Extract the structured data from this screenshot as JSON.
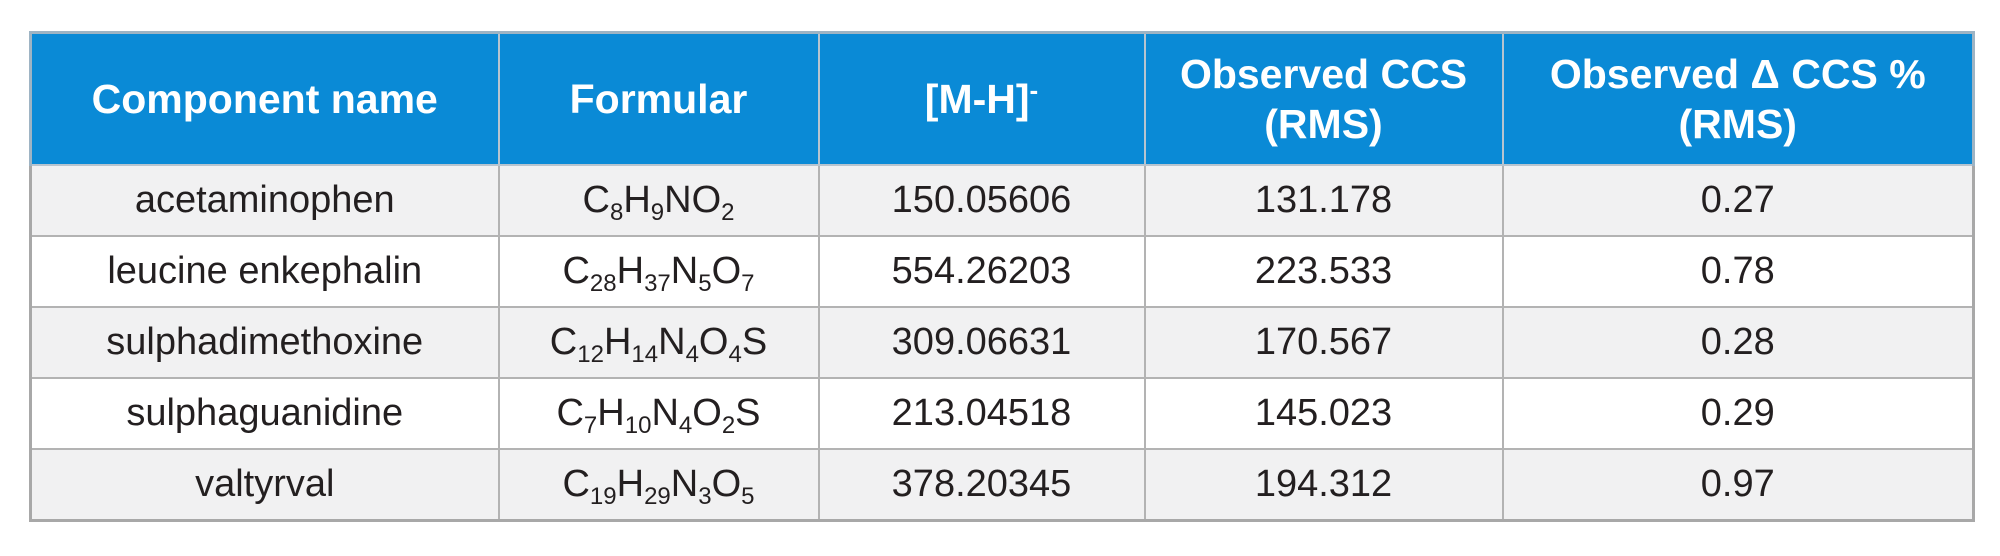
{
  "table": {
    "headers": [
      "Component name",
      "Formular",
      "[M-H]",
      "Observed CCS (RMS)",
      "Observed Δ CCS % (RMS)"
    ],
    "header_mh_superscript": "-",
    "rows": [
      {
        "name": "acetaminophen",
        "formula": [
          [
            "C",
            "8"
          ],
          [
            "H",
            "9"
          ],
          [
            "N",
            ""
          ],
          [
            "O",
            "2"
          ]
        ],
        "mz": "150.05606",
        "ccs": "131.178",
        "delta": "0.27"
      },
      {
        "name": "leucine enkephalin",
        "formula": [
          [
            "C",
            "28"
          ],
          [
            "H",
            "37"
          ],
          [
            "N",
            "5"
          ],
          [
            "O",
            "7"
          ]
        ],
        "mz": "554.26203",
        "ccs": "223.533",
        "delta": "0.78"
      },
      {
        "name": "sulphadimethoxine",
        "formula": [
          [
            "C",
            "12"
          ],
          [
            "H",
            "14"
          ],
          [
            "N",
            "4"
          ],
          [
            "O",
            "4"
          ],
          [
            "S",
            ""
          ]
        ],
        "mz": "309.06631",
        "ccs": "170.567",
        "delta": "0.28"
      },
      {
        "name": "sulphaguanidine",
        "formula": [
          [
            "C",
            "7"
          ],
          [
            "H",
            "10"
          ],
          [
            "N",
            "4"
          ],
          [
            "O",
            "2"
          ],
          [
            "S",
            ""
          ]
        ],
        "mz": "213.04518",
        "ccs": "145.023",
        "delta": "0.29"
      },
      {
        "name": "valtyrval",
        "formula": [
          [
            "C",
            "19"
          ],
          [
            "H",
            "29"
          ],
          [
            "N",
            "3"
          ],
          [
            "O",
            "5"
          ]
        ],
        "mz": "378.20345",
        "ccs": "194.312",
        "delta": "0.97"
      }
    ]
  },
  "colors": {
    "header_background": "#0a8ad6",
    "header_text": "#ffffff",
    "shaded_row": "#f1f1f2",
    "body_text": "#231f20",
    "grid": "#b3b3b3"
  }
}
